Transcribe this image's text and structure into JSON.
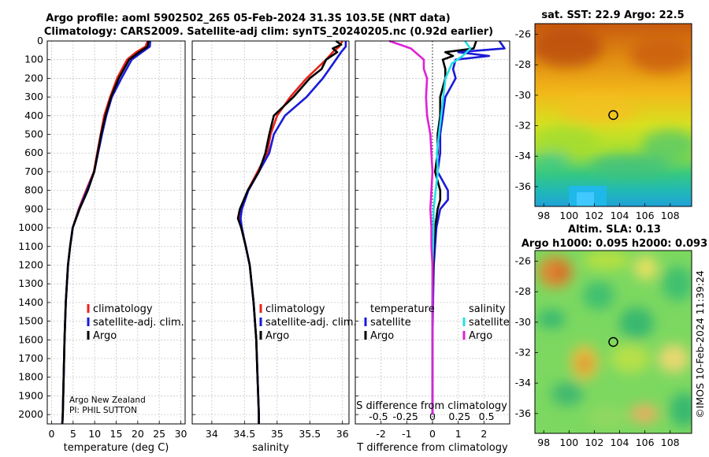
{
  "header": {
    "line1": "Argo profile: aoml 5902502_265 05-Feb-2024 31.3S 103.5E (NRT data)",
    "line2": "Climatology: CARS2009. Satellite-adj clim: synTS_20240205.nc (0.92d earlier)"
  },
  "colors": {
    "climatology": "#e8231b",
    "satellite": "#1a1ad8",
    "argo": "#000000",
    "sat_salinity": "#22e0e8",
    "argo_salinity": "#e020d8"
  },
  "chart_data": [
    {
      "id": "temperature",
      "type": "line",
      "xlabel": "temperature (deg C)",
      "xlim": [
        -1,
        31
      ],
      "xticks": [
        0,
        5,
        10,
        15,
        20,
        25,
        30
      ],
      "xticklabels": [
        "0",
        "5",
        "10",
        "15",
        "20",
        "25",
        "30"
      ],
      "ylim": [
        0,
        2050
      ],
      "yticks": [
        0,
        100,
        200,
        300,
        400,
        500,
        600,
        700,
        800,
        900,
        1000,
        1100,
        1200,
        1300,
        1400,
        1500,
        1600,
        1700,
        1800,
        1900,
        2000
      ],
      "yticklabels": [
        "0",
        "100",
        "200",
        "300",
        "400",
        "500",
        "600",
        "700",
        "800",
        "900",
        "1000",
        "1100",
        "1200",
        "1300",
        "1400",
        "1500",
        "1600",
        "1700",
        "1800",
        "1900",
        "2000"
      ],
      "legend": [
        "climatology",
        "satellite-adj. clim.",
        "Argo"
      ],
      "annotation": [
        "Argo New Zealand",
        "PI: PHIL SUTTON"
      ],
      "series": [
        {
          "name": "climatology",
          "color": "#e8231b",
          "depth": [
            0,
            30,
            60,
            100,
            200,
            300,
            400,
            500,
            600,
            700,
            800,
            900,
            1000,
            1100,
            1200,
            1400,
            1600,
            1800,
            2000,
            2050
          ],
          "values": [
            22.3,
            21.8,
            19.6,
            17.5,
            15.2,
            13.6,
            12.2,
            11.4,
            10.6,
            9.8,
            8.0,
            6.3,
            4.9,
            4.3,
            3.8,
            3.3,
            3.0,
            2.8,
            2.6,
            2.5
          ]
        },
        {
          "name": "satellite-adj. clim.",
          "color": "#1a1ad8",
          "depth": [
            0,
            30,
            60,
            100,
            200,
            300,
            400,
            500,
            600,
            700,
            800,
            900,
            1000,
            1100,
            1200,
            1400,
            1600,
            1800,
            2000,
            2050
          ],
          "values": [
            22.9,
            22.8,
            21.0,
            18.6,
            16.2,
            14.0,
            12.7,
            11.7,
            10.8,
            9.9,
            8.2,
            6.4,
            4.9,
            4.3,
            3.8,
            3.3,
            3.0,
            2.8,
            2.6,
            2.5
          ]
        },
        {
          "name": "Argo",
          "color": "#000000",
          "depth": [
            0,
            30,
            60,
            100,
            200,
            300,
            400,
            500,
            600,
            700,
            800,
            900,
            1000,
            1100,
            1200,
            1400,
            1600,
            1800,
            2000,
            2050
          ],
          "values": [
            22.5,
            22.3,
            20.3,
            18.0,
            15.6,
            13.8,
            12.5,
            11.5,
            10.7,
            9.9,
            8.4,
            6.5,
            4.9,
            4.3,
            3.8,
            3.3,
            3.0,
            2.8,
            2.6,
            2.5
          ]
        }
      ]
    },
    {
      "id": "salinity",
      "type": "line",
      "xlabel": "salinity",
      "xlim": [
        33.7,
        36.1
      ],
      "xticks": [
        34,
        34.5,
        35,
        35.5,
        36
      ],
      "xticklabels": [
        "34",
        "34.5",
        "35",
        "35.5",
        "36"
      ],
      "ylim": [
        0,
        2050
      ],
      "legend": [
        "climatology",
        "satellite-adj. clim.",
        "Argo"
      ],
      "series": [
        {
          "name": "climatology",
          "color": "#e8231b",
          "depth": [
            0,
            30,
            60,
            100,
            150,
            200,
            300,
            400,
            500,
            600,
            700,
            800,
            900,
            950,
            1000,
            1100,
            1200,
            1400,
            1600,
            1800,
            2000,
            2050
          ],
          "values": [
            36.0,
            35.95,
            35.85,
            35.75,
            35.6,
            35.45,
            35.2,
            35.0,
            34.9,
            34.85,
            34.7,
            34.55,
            34.45,
            34.42,
            34.45,
            34.52,
            34.58,
            34.64,
            34.68,
            34.7,
            34.72,
            34.72
          ]
        },
        {
          "name": "satellite-adj. clim.",
          "color": "#1a1ad8",
          "depth": [
            0,
            30,
            60,
            100,
            150,
            200,
            300,
            400,
            500,
            600,
            700,
            800,
            900,
            950,
            1000,
            1100,
            1200,
            1400,
            1600,
            1800,
            2000,
            2050
          ],
          "values": [
            36.05,
            36.05,
            35.98,
            35.9,
            35.8,
            35.7,
            35.45,
            35.12,
            34.95,
            34.88,
            34.72,
            34.56,
            34.46,
            34.44,
            34.46,
            34.52,
            34.58,
            34.64,
            34.68,
            34.7,
            34.72,
            34.72
          ]
        },
        {
          "name": "Argo",
          "color": "#000000",
          "depth": [
            0,
            20,
            40,
            60,
            100,
            150,
            200,
            300,
            400,
            500,
            600,
            700,
            800,
            900,
            950,
            1000,
            1100,
            1200,
            1400,
            1600,
            1800,
            2000,
            2050
          ],
          "values": [
            35.9,
            35.98,
            35.85,
            35.92,
            35.75,
            35.68,
            35.5,
            35.25,
            34.95,
            34.88,
            34.82,
            34.72,
            34.55,
            34.43,
            34.4,
            34.45,
            34.52,
            34.58,
            34.64,
            34.68,
            34.7,
            34.72,
            34.72
          ]
        }
      ]
    },
    {
      "id": "differences",
      "type": "line",
      "xlabel": "T difference from climatology",
      "xlabel_top": "S difference from climatology",
      "xlim": [
        -3,
        3
      ],
      "xticks": [
        -2,
        -1,
        0,
        1,
        2
      ],
      "xticklabels": [
        "-2",
        "-1",
        "0",
        "1",
        "2"
      ],
      "sticks": [
        -0.5,
        -0.25,
        0,
        0.25,
        0.5
      ],
      "sticklabels": [
        "-0.5",
        "-0.25",
        "0",
        "0.25",
        "0.5"
      ],
      "ylim": [
        0,
        2050
      ],
      "legend_temperature_title": "temperature",
      "legend_salinity_title": "salinity",
      "legend_temperature": [
        "satellite",
        "Argo"
      ],
      "legend_salinity": [
        "satellite",
        "Argo"
      ],
      "series": [
        {
          "name": "temperature satellite",
          "color": "#1a1ad8",
          "depth": [
            0,
            40,
            60,
            80,
            100,
            150,
            200,
            300,
            400,
            500,
            600,
            700,
            800,
            850,
            900,
            1000,
            1100,
            1200,
            1400,
            1600,
            1800,
            2000
          ],
          "values": [
            2.6,
            2.8,
            1.0,
            2.2,
            0.9,
            0.8,
            0.9,
            0.5,
            0.4,
            0.3,
            0.3,
            0.2,
            0.6,
            0.6,
            0.3,
            0.15,
            0.1,
            0.05,
            0.02,
            0.0,
            0.0,
            0.0
          ]
        },
        {
          "name": "temperature Argo",
          "color": "#000000",
          "depth": [
            0,
            40,
            60,
            80,
            100,
            150,
            200,
            300,
            400,
            500,
            600,
            700,
            800,
            850,
            900,
            1000,
            1100,
            1200,
            1400,
            1600,
            1800,
            2000
          ],
          "values": [
            1.7,
            1.6,
            0.5,
            0.8,
            0.4,
            0.5,
            0.5,
            0.3,
            0.3,
            0.2,
            0.2,
            0.1,
            0.3,
            0.3,
            0.2,
            0.1,
            0.05,
            0.03,
            0.0,
            0.0,
            0.0,
            0.0
          ]
        },
        {
          "name": "salinity satellite",
          "color": "#22e0e8",
          "depth": [
            0,
            40,
            80,
            120,
            200,
            300,
            400,
            500,
            600,
            700,
            800,
            900,
            1000,
            1200,
            1400,
            1600,
            1800,
            2000
          ],
          "values": [
            0.3,
            0.35,
            0.28,
            0.18,
            0.12,
            0.1,
            0.08,
            0.06,
            0.04,
            0.05,
            0.03,
            0.01,
            0.01,
            0.0,
            0.0,
            0.0,
            0.0,
            0.0
          ]
        },
        {
          "name": "salinity Argo",
          "color": "#e020d8",
          "depth": [
            0,
            40,
            100,
            150,
            200,
            300,
            400,
            500,
            600,
            700,
            800,
            900,
            1000,
            1100,
            1200,
            1400,
            1600,
            1800,
            2000
          ],
          "values": [
            -0.4,
            -0.2,
            -0.08,
            -0.08,
            -0.05,
            -0.06,
            -0.05,
            -0.02,
            -0.01,
            0.0,
            -0.01,
            -0.02,
            -0.01,
            -0.01,
            0.0,
            0.0,
            0.0,
            0.0,
            0.0
          ]
        }
      ]
    },
    {
      "id": "sst_map",
      "type": "heatmap",
      "title": "sat. SST: 22.9 Argo: 22.5",
      "xticks": [
        98,
        100,
        102,
        104,
        106,
        108
      ],
      "xticklabels": [
        "98",
        "100",
        "102",
        "104",
        "106",
        "108"
      ],
      "yticks": [
        -26,
        -28,
        -30,
        -32,
        -34,
        -36
      ],
      "yticklabels": [
        "-26",
        "-28",
        "-30",
        "-32",
        "-34",
        "-36"
      ],
      "xlim": [
        97.3,
        109.7
      ],
      "ylim": [
        -37.3,
        -25.3
      ],
      "marker": [
        103.5,
        -31.3
      ]
    },
    {
      "id": "sla_map",
      "type": "heatmap",
      "title": "Altim. SLA: 0.13",
      "subtitle": "Argo h1000: 0.095 h2000: 0.093",
      "xticks": [
        98,
        100,
        102,
        104,
        106,
        108
      ],
      "xticklabels": [
        "98",
        "100",
        "102",
        "104",
        "106",
        "108"
      ],
      "yticks": [
        -26,
        -28,
        -30,
        -32,
        -34,
        -36
      ],
      "yticklabels": [
        "-26",
        "-28",
        "-30",
        "-32",
        "-34",
        "-36"
      ],
      "xlim": [
        97.3,
        109.7
      ],
      "ylim": [
        -37.3,
        -25.3
      ],
      "marker": [
        103.5,
        -31.3
      ]
    }
  ],
  "footer": {
    "stamp": "©IMOS 10-Feb-2024 11:39:24"
  }
}
